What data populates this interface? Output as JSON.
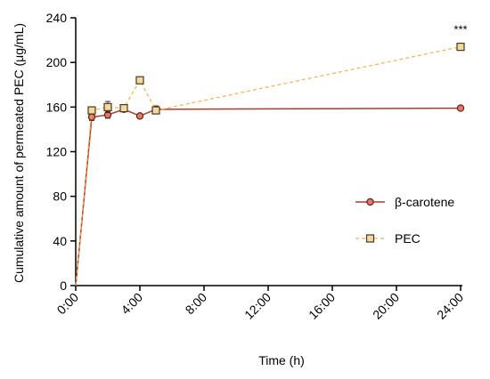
{
  "chart_data": {
    "type": "line",
    "title": "",
    "xlabel": "Time (h)",
    "ylabel": "Cumulative amount of permeated PEC (μg/mL)",
    "xlim": [
      0,
      24
    ],
    "ylim": [
      0,
      240
    ],
    "x_ticks": [
      {
        "value": 0,
        "label": "0:00"
      },
      {
        "value": 4,
        "label": "4:00"
      },
      {
        "value": 8,
        "label": "8:00"
      },
      {
        "value": 12,
        "label": "12:00"
      },
      {
        "value": 16,
        "label": "16:00"
      },
      {
        "value": 20,
        "label": "20:00"
      },
      {
        "value": 24,
        "label": "24:00"
      }
    ],
    "y_ticks": [
      {
        "value": 0,
        "label": "0"
      },
      {
        "value": 40,
        "label": "40"
      },
      {
        "value": 80,
        "label": "80"
      },
      {
        "value": 120,
        "label": "120"
      },
      {
        "value": 160,
        "label": "160"
      },
      {
        "value": 200,
        "label": "200"
      },
      {
        "value": 240,
        "label": "240"
      }
    ],
    "grid": false,
    "legend_position": "right",
    "series": [
      {
        "name": "β-carotene",
        "color": "#B03A2E",
        "marker_fill": "#E07A68",
        "line_style": "solid",
        "marker": "circle",
        "x": [
          0,
          1,
          2,
          3,
          4,
          5,
          24
        ],
        "y": [
          0,
          151,
          153,
          158,
          152,
          158,
          159
        ],
        "error": [
          0,
          3,
          3,
          2,
          1,
          3,
          1
        ]
      },
      {
        "name": "PEC",
        "color": "#F2B24A",
        "marker_fill": "#F2D9A0",
        "line_style": "dashed",
        "marker": "square",
        "x": [
          0,
          1,
          2,
          3,
          4,
          5,
          24
        ],
        "y": [
          0,
          157,
          160,
          159,
          184,
          157,
          214
        ],
        "error": [
          0,
          3,
          5,
          2,
          1,
          3,
          2
        ]
      }
    ],
    "annotations": [
      {
        "x": 24,
        "y": 226,
        "text": "***"
      }
    ]
  }
}
